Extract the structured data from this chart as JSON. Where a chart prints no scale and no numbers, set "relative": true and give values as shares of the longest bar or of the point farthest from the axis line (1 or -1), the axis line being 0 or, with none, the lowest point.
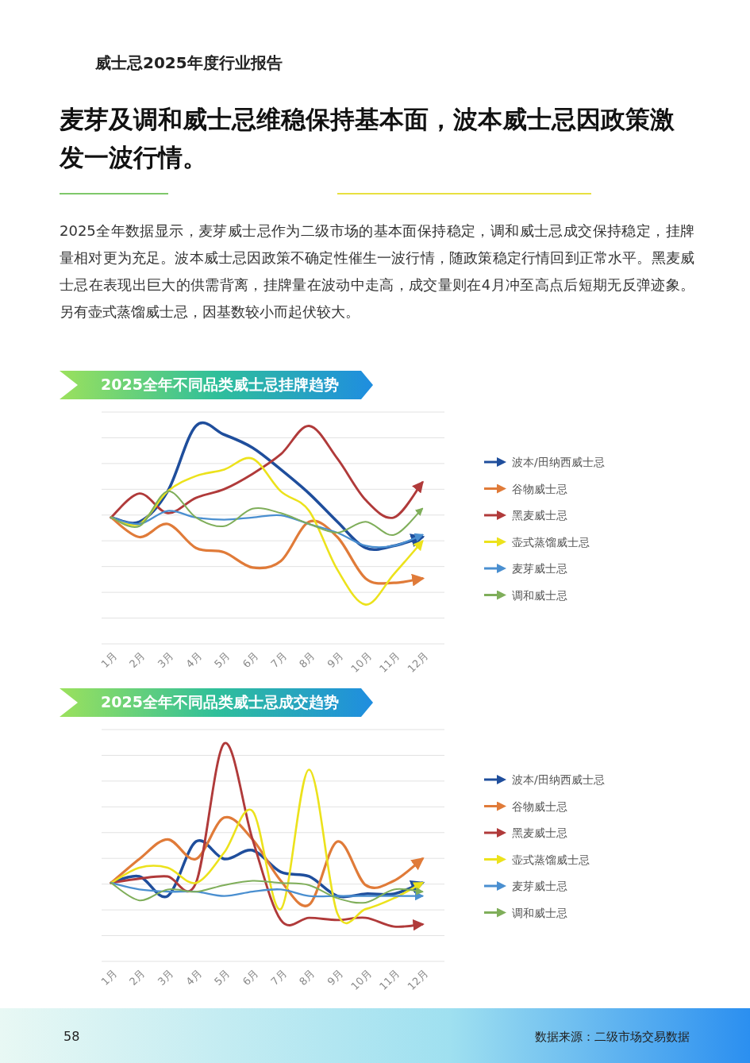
{
  "chart_data": [
    {
      "type": "other",
      "subtitle": "威士忌2025年度行业报告",
      "title": "麦芽及调和威士忌维稳保持基本面，波本威士忌因政策激发一波行情。",
      "annotations": [
        "2025全年数据显示，麦芽威士忌作为二级市场的基本面保持稳定，调和威士忌成交保持稳定，挂牌量相对更为充足。波本威士忌因政策不确定性催生一波行情，随政策稳定行情回到正常水平。黑麦威士忌在表现出巨大的供需背离，挂牌量在波动中走高，成交量则在4月冲至高点后短期无反弹迹象。另有壶式蒸馏威士忌，因基数较小而起伏较大。",
        "58",
        "数据来源：二级市场交易数据"
      ]
    },
    {
      "type": "line",
      "title": "2025全年不同品类威士忌挂牌趋势",
      "relative": true,
      "grid": "y",
      "legend": "right",
      "categories": [
        "1月",
        "2月",
        "3月",
        "4月",
        "5月",
        "6月",
        "7月",
        "8月",
        "9月",
        "10月",
        "11月",
        "12月"
      ],
      "series": [
        {
          "name": "波本/田纳西威士忌",
          "color": "#1f4e9c",
          "values": [
            0.58,
            0.56,
            0.7,
            1.0,
            0.96,
            0.9,
            0.8,
            0.69,
            0.56,
            0.44,
            0.45,
            0.49
          ]
        },
        {
          "name": "谷物威士忌",
          "color": "#e07b39",
          "values": [
            0.58,
            0.49,
            0.55,
            0.44,
            0.42,
            0.35,
            0.38,
            0.56,
            0.49,
            0.3,
            0.28,
            0.3
          ]
        },
        {
          "name": "黑麦威士忌",
          "color": "#b03a3a",
          "values": [
            0.58,
            0.69,
            0.6,
            0.67,
            0.71,
            0.78,
            0.87,
            1.0,
            0.85,
            0.66,
            0.58,
            0.74
          ]
        },
        {
          "name": "壶式蒸馏威士忌",
          "color": "#ece21c",
          "values": [
            0.58,
            0.55,
            0.7,
            0.77,
            0.8,
            0.85,
            0.7,
            0.61,
            0.34,
            0.18,
            0.32,
            0.47
          ]
        },
        {
          "name": "麦芽威士忌",
          "color": "#4a8fd0",
          "values": [
            0.58,
            0.55,
            0.61,
            0.58,
            0.57,
            0.58,
            0.59,
            0.55,
            0.51,
            0.45,
            0.45,
            0.5
          ]
        },
        {
          "name": "调和威士忌",
          "color": "#7fae5a",
          "values": [
            0.58,
            0.54,
            0.7,
            0.58,
            0.54,
            0.62,
            0.6,
            0.55,
            0.51,
            0.56,
            0.5,
            0.62
          ]
        }
      ]
    },
    {
      "type": "line",
      "title": "2025全年不同品类威士忌成交趋势",
      "relative": true,
      "grid": "y",
      "legend": "right",
      "categories": [
        "1月",
        "2月",
        "3月",
        "4月",
        "5月",
        "6月",
        "7月",
        "8月",
        "9月",
        "10月",
        "11月",
        "12月"
      ],
      "series": [
        {
          "name": "波本/田纳西威士忌",
          "color": "#1f4e9c",
          "values": [
            0.36,
            0.39,
            0.3,
            0.55,
            0.47,
            0.51,
            0.41,
            0.39,
            0.3,
            0.31,
            0.31,
            0.36
          ]
        },
        {
          "name": "谷物威士忌",
          "color": "#e07b39",
          "values": [
            0.36,
            0.47,
            0.56,
            0.47,
            0.66,
            0.56,
            0.37,
            0.26,
            0.55,
            0.35,
            0.37,
            0.47
          ]
        },
        {
          "name": "黑麦威士忌",
          "color": "#b03a3a",
          "values": [
            0.36,
            0.38,
            0.39,
            0.36,
            1.0,
            0.56,
            0.19,
            0.2,
            0.19,
            0.2,
            0.16,
            0.17
          ]
        },
        {
          "name": "壶式蒸馏威士忌",
          "color": "#ece21c",
          "values": [
            0.36,
            0.43,
            0.43,
            0.36,
            0.5,
            0.69,
            0.24,
            0.88,
            0.22,
            0.24,
            0.29,
            0.36
          ]
        },
        {
          "name": "麦芽威士忌",
          "color": "#4a8fd0",
          "values": [
            0.36,
            0.33,
            0.32,
            0.32,
            0.3,
            0.32,
            0.33,
            0.3,
            0.3,
            0.3,
            0.3,
            0.3
          ]
        },
        {
          "name": "调和威士忌",
          "color": "#7fae5a",
          "values": [
            0.36,
            0.28,
            0.33,
            0.32,
            0.35,
            0.37,
            0.36,
            0.35,
            0.29,
            0.27,
            0.33,
            0.32
          ]
        }
      ]
    }
  ]
}
